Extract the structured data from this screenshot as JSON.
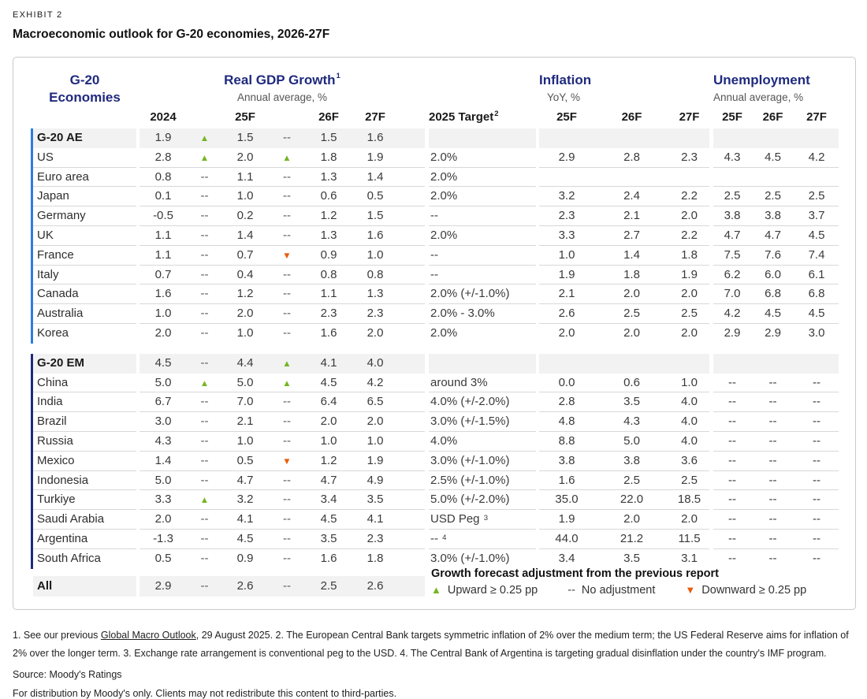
{
  "exhibit_label": "EXHIBIT 2",
  "title": "Macroeconomic outlook for G-20 economies, 2026-27F",
  "icons": {
    "up": "▲",
    "down": "▼",
    "dash": "--"
  },
  "colors": {
    "navy": "#1f2a7e",
    "ae_bar_blue": "#2d7de1",
    "up_green": "#74b622",
    "down_orange": "#e85c0c",
    "summary_row_bg": "#f2f2f2"
  },
  "table": {
    "headers": {
      "economies_line1": "G-20",
      "economies_line2": "Economies",
      "gdp_title": "Real GDP Growth",
      "gdp_sup": "1",
      "gdp_subtitle": "Annual average, %",
      "gdp_cols": [
        "2024",
        "25F",
        "26F",
        "27F"
      ],
      "target_label": "2025 Target",
      "target_sup": "2",
      "inflation_title": "Inflation",
      "inflation_subtitle": "YoY, %",
      "inflation_cols": [
        "25F",
        "26F",
        "27F"
      ],
      "unemployment_title": "Unemployment",
      "unemployment_subtitle": "Annual average, %",
      "unemployment_cols": [
        "25F",
        "26F",
        "27F"
      ]
    },
    "rows": [
      {
        "label": "G-20 AE",
        "block": "ae",
        "summary": true,
        "divider": false,
        "g2024": "1.9",
        "adj25": "up",
        "g25": "1.5",
        "adj26": "dash",
        "g26": "1.5",
        "g27": "1.6",
        "target": "",
        "target_sup": "",
        "inflation": [
          "",
          "",
          ""
        ],
        "unemployment": [
          "",
          "",
          ""
        ]
      },
      {
        "label": "US",
        "block": "ae",
        "summary": false,
        "divider": true,
        "g2024": "2.8",
        "adj25": "up",
        "g25": "2.0",
        "adj26": "up",
        "g26": "1.8",
        "g27": "1.9",
        "target": "2.0%",
        "target_sup": "",
        "inflation": [
          "2.9",
          "2.8",
          "2.3"
        ],
        "unemployment": [
          "4.3",
          "4.5",
          "4.2"
        ]
      },
      {
        "label": "Euro area",
        "block": "ae",
        "summary": false,
        "divider": true,
        "g2024": "0.8",
        "adj25": "dash",
        "g25": "1.1",
        "adj26": "dash",
        "g26": "1.3",
        "g27": "1.4",
        "target": "2.0%",
        "target_sup": "",
        "inflation": [
          "",
          "",
          ""
        ],
        "unemployment": [
          "",
          "",
          ""
        ]
      },
      {
        "label": "Japan",
        "block": "ae",
        "summary": false,
        "divider": true,
        "g2024": "0.1",
        "adj25": "dash",
        "g25": "1.0",
        "adj26": "dash",
        "g26": "0.6",
        "g27": "0.5",
        "target": "2.0%",
        "target_sup": "",
        "inflation": [
          "3.2",
          "2.4",
          "2.2"
        ],
        "unemployment": [
          "2.5",
          "2.5",
          "2.5"
        ]
      },
      {
        "label": "Germany",
        "block": "ae",
        "summary": false,
        "divider": true,
        "g2024": "-0.5",
        "adj25": "dash",
        "g25": "0.2",
        "adj26": "dash",
        "g26": "1.2",
        "g27": "1.5",
        "target": "--",
        "target_sup": "",
        "inflation": [
          "2.3",
          "2.1",
          "2.0"
        ],
        "unemployment": [
          "3.8",
          "3.8",
          "3.7"
        ]
      },
      {
        "label": "UK",
        "block": "ae",
        "summary": false,
        "divider": true,
        "g2024": "1.1",
        "adj25": "dash",
        "g25": "1.4",
        "adj26": "dash",
        "g26": "1.3",
        "g27": "1.6",
        "target": "2.0%",
        "target_sup": "",
        "inflation": [
          "3.3",
          "2.7",
          "2.2"
        ],
        "unemployment": [
          "4.7",
          "4.7",
          "4.5"
        ]
      },
      {
        "label": "France",
        "block": "ae",
        "summary": false,
        "divider": true,
        "g2024": "1.1",
        "adj25": "dash",
        "g25": "0.7",
        "adj26": "down",
        "g26": "0.9",
        "g27": "1.0",
        "target": "--",
        "target_sup": "",
        "inflation": [
          "1.0",
          "1.4",
          "1.8"
        ],
        "unemployment": [
          "7.5",
          "7.6",
          "7.4"
        ]
      },
      {
        "label": "Italy",
        "block": "ae",
        "summary": false,
        "divider": true,
        "g2024": "0.7",
        "adj25": "dash",
        "g25": "0.4",
        "adj26": "dash",
        "g26": "0.8",
        "g27": "0.8",
        "target": "--",
        "target_sup": "",
        "inflation": [
          "1.9",
          "1.8",
          "1.9"
        ],
        "unemployment": [
          "6.2",
          "6.0",
          "6.1"
        ]
      },
      {
        "label": "Canada",
        "block": "ae",
        "summary": false,
        "divider": true,
        "g2024": "1.6",
        "adj25": "dash",
        "g25": "1.2",
        "adj26": "dash",
        "g26": "1.1",
        "g27": "1.3",
        "target": "2.0% (+/-1.0%)",
        "target_sup": "",
        "inflation": [
          "2.1",
          "2.0",
          "2.0"
        ],
        "unemployment": [
          "7.0",
          "6.8",
          "6.8"
        ]
      },
      {
        "label": "Australia",
        "block": "ae",
        "summary": false,
        "divider": true,
        "g2024": "1.0",
        "adj25": "dash",
        "g25": "2.0",
        "adj26": "dash",
        "g26": "2.3",
        "g27": "2.3",
        "target": "2.0% - 3.0%",
        "target_sup": "",
        "inflation": [
          "2.6",
          "2.5",
          "2.5"
        ],
        "unemployment": [
          "4.2",
          "4.5",
          "4.5"
        ]
      },
      {
        "label": "Korea",
        "block": "ae",
        "summary": false,
        "divider": false,
        "g2024": "2.0",
        "adj25": "dash",
        "g25": "1.0",
        "adj26": "dash",
        "g26": "1.6",
        "g27": "2.0",
        "target": "2.0%",
        "target_sup": "",
        "inflation": [
          "2.0",
          "2.0",
          "2.0"
        ],
        "unemployment": [
          "2.9",
          "2.9",
          "3.0"
        ]
      },
      {
        "label": "G-20 EM",
        "block": "em",
        "summary": true,
        "divider": false,
        "g2024": "4.5",
        "adj25": "dash",
        "g25": "4.4",
        "adj26": "up",
        "g26": "4.1",
        "g27": "4.0",
        "target": "",
        "target_sup": "",
        "inflation": [
          "",
          "",
          ""
        ],
        "unemployment": [
          "",
          "",
          ""
        ]
      },
      {
        "label": "China",
        "block": "em",
        "summary": false,
        "divider": true,
        "g2024": "5.0",
        "adj25": "up",
        "g25": "5.0",
        "adj26": "up",
        "g26": "4.5",
        "g27": "4.2",
        "target": "around 3%",
        "target_sup": "",
        "inflation": [
          "0.0",
          "0.6",
          "1.0"
        ],
        "unemployment": [
          "--",
          "--",
          "--"
        ]
      },
      {
        "label": "India",
        "block": "em",
        "summary": false,
        "divider": true,
        "g2024": "6.7",
        "adj25": "dash",
        "g25": "7.0",
        "adj26": "dash",
        "g26": "6.4",
        "g27": "6.5",
        "target": "4.0% (+/-2.0%)",
        "target_sup": "",
        "inflation": [
          "2.8",
          "3.5",
          "4.0"
        ],
        "unemployment": [
          "--",
          "--",
          "--"
        ]
      },
      {
        "label": "Brazil",
        "block": "em",
        "summary": false,
        "divider": true,
        "g2024": "3.0",
        "adj25": "dash",
        "g25": "2.1",
        "adj26": "dash",
        "g26": "2.0",
        "g27": "2.0",
        "target": "3.0% (+/-1.5%)",
        "target_sup": "",
        "inflation": [
          "4.8",
          "4.3",
          "4.0"
        ],
        "unemployment": [
          "--",
          "--",
          "--"
        ]
      },
      {
        "label": "Russia",
        "block": "em",
        "summary": false,
        "divider": true,
        "g2024": "4.3",
        "adj25": "dash",
        "g25": "1.0",
        "adj26": "dash",
        "g26": "1.0",
        "g27": "1.0",
        "target": "4.0%",
        "target_sup": "",
        "inflation": [
          "8.8",
          "5.0",
          "4.0"
        ],
        "unemployment": [
          "--",
          "--",
          "--"
        ]
      },
      {
        "label": "Mexico",
        "block": "em",
        "summary": false,
        "divider": true,
        "g2024": "1.4",
        "adj25": "dash",
        "g25": "0.5",
        "adj26": "down",
        "g26": "1.2",
        "g27": "1.9",
        "target": "3.0% (+/-1.0%)",
        "target_sup": "",
        "inflation": [
          "3.8",
          "3.8",
          "3.6"
        ],
        "unemployment": [
          "--",
          "--",
          "--"
        ]
      },
      {
        "label": "Indonesia",
        "block": "em",
        "summary": false,
        "divider": true,
        "g2024": "5.0",
        "adj25": "dash",
        "g25": "4.7",
        "adj26": "dash",
        "g26": "4.7",
        "g27": "4.9",
        "target": "2.5% (+/-1.0%)",
        "target_sup": "",
        "inflation": [
          "1.6",
          "2.5",
          "2.5"
        ],
        "unemployment": [
          "--",
          "--",
          "--"
        ]
      },
      {
        "label": "Turkiye",
        "block": "em",
        "summary": false,
        "divider": true,
        "g2024": "3.3",
        "adj25": "up",
        "g25": "3.2",
        "adj26": "dash",
        "g26": "3.4",
        "g27": "3.5",
        "target": "5.0% (+/-2.0%)",
        "target_sup": "",
        "inflation": [
          "35.0",
          "22.0",
          "18.5"
        ],
        "unemployment": [
          "--",
          "--",
          "--"
        ]
      },
      {
        "label": "Saudi Arabia",
        "block": "em",
        "summary": false,
        "divider": true,
        "g2024": "2.0",
        "adj25": "dash",
        "g25": "4.1",
        "adj26": "dash",
        "g26": "4.5",
        "g27": "4.1",
        "target": "USD Peg",
        "target_sup": "3",
        "inflation": [
          "1.9",
          "2.0",
          "2.0"
        ],
        "unemployment": [
          "--",
          "--",
          "--"
        ]
      },
      {
        "label": "Argentina",
        "block": "em",
        "summary": false,
        "divider": true,
        "g2024": "-1.3",
        "adj25": "dash",
        "g25": "4.5",
        "adj26": "dash",
        "g26": "3.5",
        "g27": "2.3",
        "target": "--",
        "target_sup": "4",
        "inflation": [
          "44.0",
          "21.2",
          "11.5"
        ],
        "unemployment": [
          "--",
          "--",
          "--"
        ]
      },
      {
        "label": "South Africa",
        "block": "em",
        "summary": false,
        "divider": false,
        "g2024": "0.5",
        "adj25": "dash",
        "g25": "0.9",
        "adj26": "dash",
        "g26": "1.6",
        "g27": "1.8",
        "target": "3.0% (+/-1.0%)",
        "target_sup": "",
        "inflation": [
          "3.4",
          "3.5",
          "3.1"
        ],
        "unemployment": [
          "--",
          "--",
          "--"
        ]
      },
      {
        "label": "All",
        "block": "all",
        "summary": true,
        "divider": false,
        "g2024": "2.9",
        "adj25": "dash",
        "g25": "2.6",
        "adj26": "dash",
        "g26": "2.5",
        "g27": "2.6",
        "target": "",
        "target_sup": "",
        "inflation": [
          "",
          "",
          ""
        ],
        "unemployment": [
          "",
          "",
          ""
        ]
      }
    ],
    "legend": {
      "heading": "Growth forecast adjustment from the previous report",
      "items": [
        {
          "icon": "up",
          "label": "Upward ≥ 0.25 pp"
        },
        {
          "icon": "dash",
          "label": "No adjustment"
        },
        {
          "icon": "down",
          "label": "Downward ≥ 0.25 pp"
        }
      ]
    }
  },
  "footnotes": {
    "note1_pre": "1. See our previous ",
    "note1_link": "Global Macro Outlook",
    "note1_post": ", 29 August 2025. 2. The European Central Bank targets symmetric inflation of 2% over the medium term; the US Federal Reserve aims for inflation of 2% over the longer term. 3. Exchange rate arrangement is conventional peg to the USD. 4. The Central Bank of Argentina is targeting gradual disinflation under the country's IMF program.",
    "source": "Source: Moody's Ratings",
    "distribution": "For distribution by Moody's only. Clients may not redistribute this content to third-parties."
  }
}
